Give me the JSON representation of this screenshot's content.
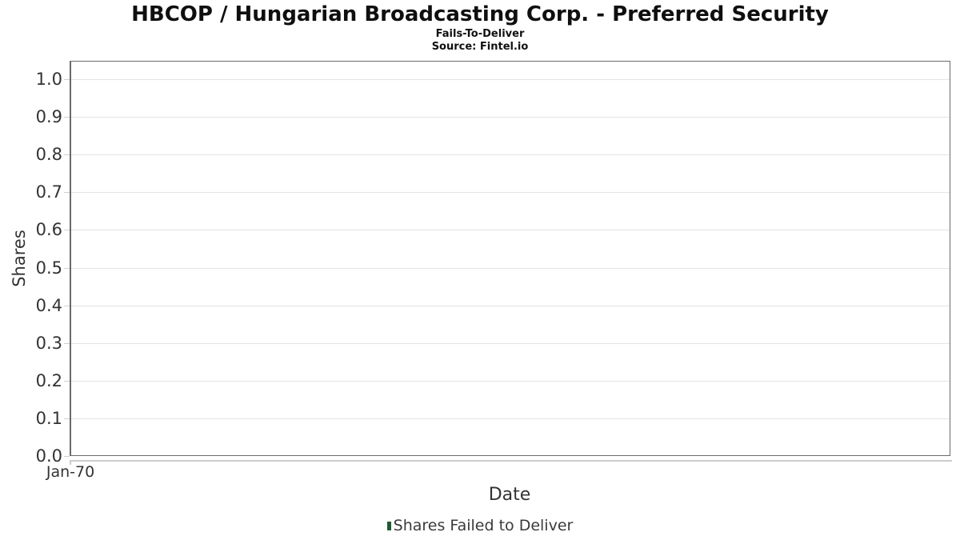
{
  "chart_data": {
    "type": "bar",
    "title": "HBCOP / Hungarian Broadcasting Corp. - Preferred Security",
    "subtitle": "Fails-To-Deliver",
    "source": "Source: Fintel.io",
    "xlabel": "Date",
    "ylabel": "Shares",
    "ylim": [
      0.0,
      1.0
    ],
    "y_tick_labels": [
      "0.0",
      "0.1",
      "0.2",
      "0.3",
      "0.4",
      "0.5",
      "0.6",
      "0.7",
      "0.8",
      "0.9",
      "1.0"
    ],
    "x_tick_labels": [
      "Jan-70"
    ],
    "grid": "horizontal-only",
    "legend_position": "bottom-center",
    "series": [
      {
        "name": "Shares Failed to Deliver",
        "type": "bar",
        "color": "#1e5b33",
        "x": [],
        "values": []
      }
    ]
  },
  "colors": {
    "background": "#ffffff",
    "plot_border": "#6a6a6a",
    "gridline": "#e3e3e3",
    "axis_line": "#cccccc",
    "tick_label": "#333333",
    "title_text": "#0f0f0f",
    "legend_marker": "#1e5b33"
  }
}
